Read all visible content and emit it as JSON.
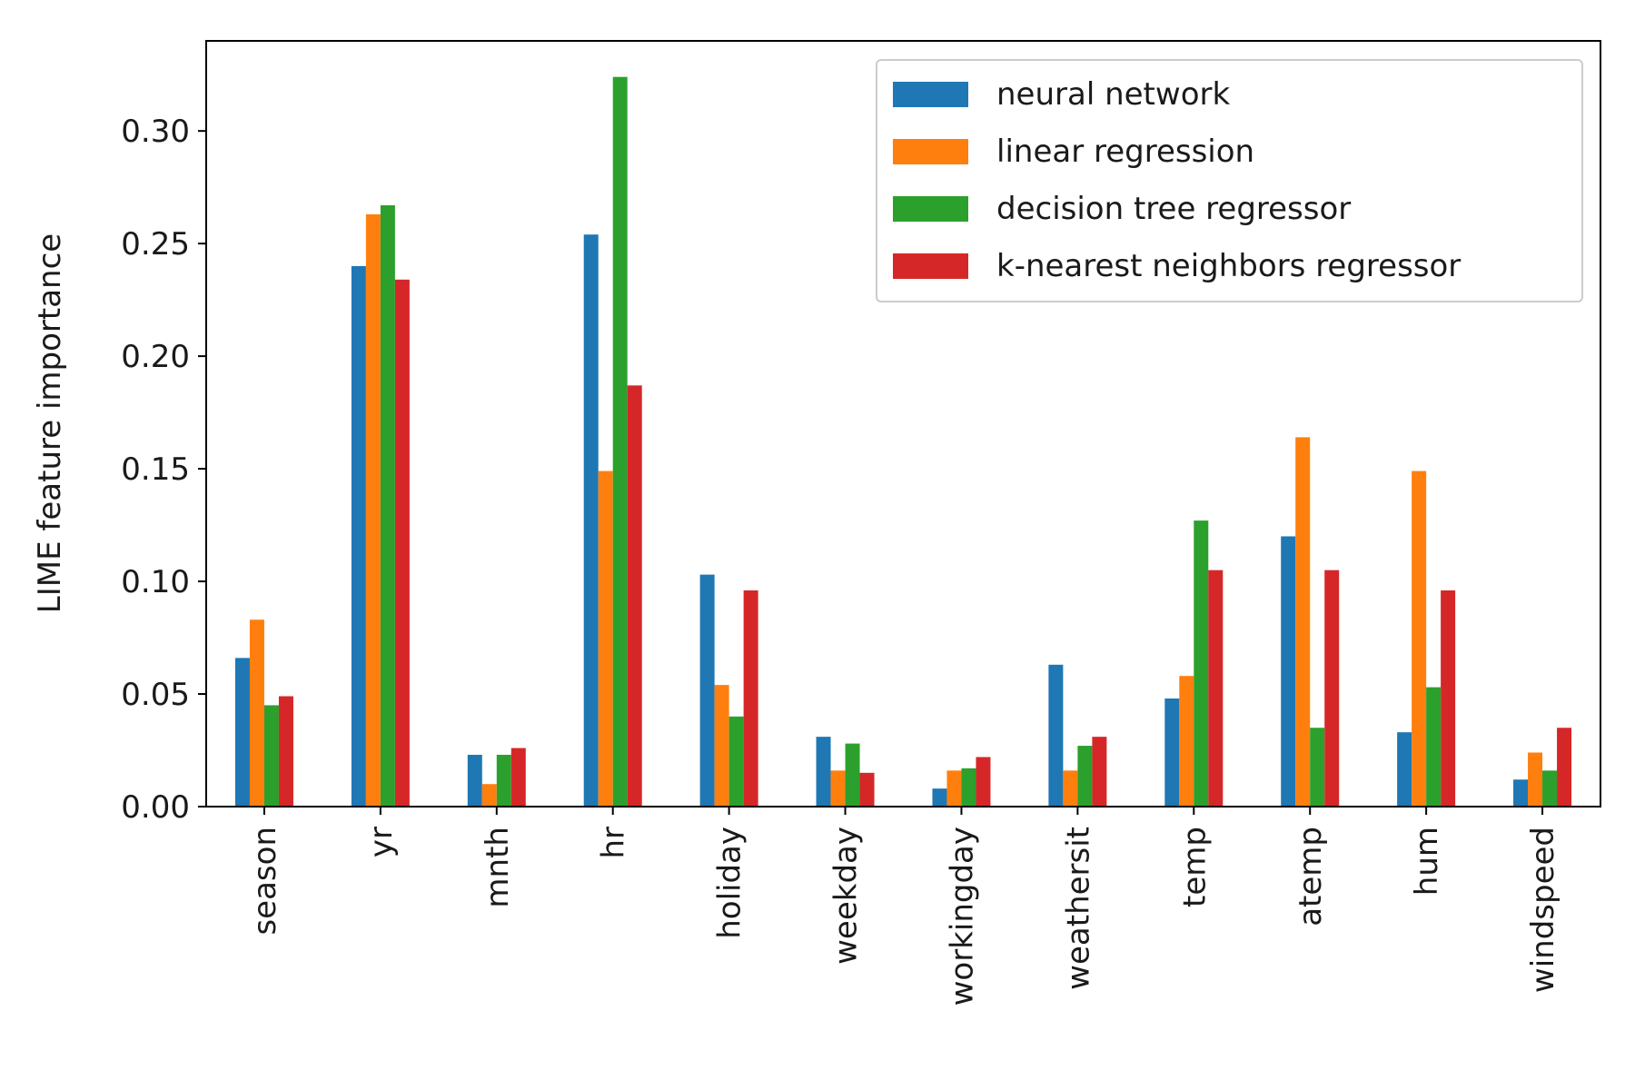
{
  "chart_data": {
    "type": "bar",
    "title": "",
    "xlabel": "",
    "ylabel": "LIME feature importance",
    "categories": [
      "season",
      "yr",
      "mnth",
      "hr",
      "holiday",
      "weekday",
      "workingday",
      "weathersit",
      "temp",
      "atemp",
      "hum",
      "windspeed"
    ],
    "series": [
      {
        "name": "neural network",
        "color": "#1f77b4",
        "values": [
          0.066,
          0.24,
          0.023,
          0.254,
          0.103,
          0.031,
          0.008,
          0.063,
          0.048,
          0.12,
          0.033,
          0.012
        ]
      },
      {
        "name": "linear regression",
        "color": "#ff7f0e",
        "values": [
          0.083,
          0.263,
          0.01,
          0.149,
          0.054,
          0.016,
          0.016,
          0.016,
          0.058,
          0.164,
          0.149,
          0.024
        ]
      },
      {
        "name": "decision tree regressor",
        "color": "#2ca02c",
        "values": [
          0.045,
          0.267,
          0.023,
          0.324,
          0.04,
          0.028,
          0.017,
          0.027,
          0.127,
          0.035,
          0.053,
          0.016
        ]
      },
      {
        "name": "k-nearest neighbors regressor",
        "color": "#d62728",
        "values": [
          0.049,
          0.234,
          0.026,
          0.187,
          0.096,
          0.015,
          0.022,
          0.031,
          0.105,
          0.105,
          0.096,
          0.035
        ]
      }
    ],
    "ylim": [
      0,
      0.34
    ],
    "yticks": [
      0.0,
      0.05,
      0.1,
      0.15,
      0.2,
      0.25,
      0.3
    ],
    "ytick_labels": [
      "0.00",
      "0.05",
      "0.10",
      "0.15",
      "0.20",
      "0.25",
      "0.30"
    ],
    "grid": false,
    "legend_position": "top-right"
  }
}
